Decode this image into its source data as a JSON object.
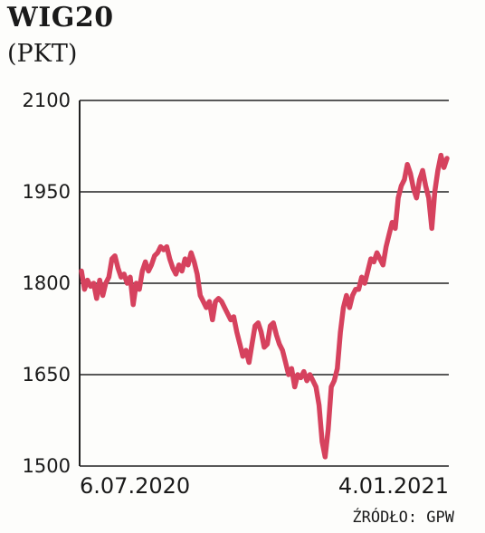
{
  "header": {
    "title": "WIG20",
    "unit": "(PKT)"
  },
  "source": "ŹRÓDŁO: GPW",
  "colors": {
    "line": "#d6425e",
    "grid": "#222222",
    "text": "#1a1a1a"
  },
  "chart_data": {
    "type": "line",
    "title": "WIG20",
    "ylabel": "(PKT)",
    "ylim": [
      1500,
      2100
    ],
    "yticks": [
      2100,
      1950,
      1800,
      1650,
      1500
    ],
    "xtick_labels": [
      "6.07.2020",
      "4.01.2021"
    ],
    "grid": "horizontal",
    "series": [
      {
        "values": [
          1820,
          1790,
          1805,
          1795,
          1800,
          1775,
          1805,
          1780,
          1800,
          1810,
          1840,
          1845,
          1825,
          1810,
          1815,
          1800,
          1810,
          1765,
          1800,
          1790,
          1820,
          1835,
          1820,
          1830,
          1845,
          1850,
          1860,
          1855,
          1860,
          1840,
          1825,
          1815,
          1830,
          1820,
          1840,
          1830,
          1850,
          1835,
          1815,
          1780,
          1770,
          1760,
          1770,
          1740,
          1770,
          1775,
          1770,
          1760,
          1750,
          1740,
          1745,
          1720,
          1700,
          1680,
          1690,
          1670,
          1700,
          1730,
          1735,
          1720,
          1695,
          1700,
          1730,
          1735,
          1715,
          1700,
          1690,
          1670,
          1650,
          1660,
          1630,
          1650,
          1645,
          1655,
          1640,
          1650,
          1640,
          1630,
          1600,
          1540,
          1515,
          1560,
          1630,
          1640,
          1660,
          1720,
          1760,
          1780,
          1760,
          1780,
          1790,
          1790,
          1810,
          1800,
          1820,
          1840,
          1835,
          1850,
          1840,
          1830,
          1860,
          1880,
          1900,
          1890,
          1940,
          1960,
          1970,
          1995,
          1980,
          1955,
          1940,
          1970,
          1985,
          1960,
          1940,
          1890,
          1950,
          1985,
          2010,
          1990,
          2005
        ]
      }
    ]
  }
}
